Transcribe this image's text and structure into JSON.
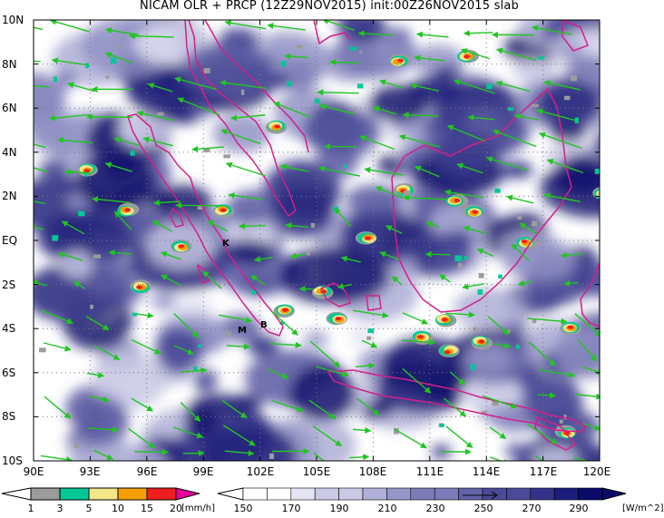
{
  "title": "NICAM OLR + PRCP (12Z29NOV2015) init:00Z26NOV2015 slab",
  "lat_labels": [
    "10N",
    "8N",
    "6N",
    "4N",
    "2N",
    "EQ",
    "2S",
    "4S",
    "6S",
    "8S",
    "10S"
  ],
  "lon_labels": [
    "90E",
    "93E",
    "96E",
    "99E",
    "102E",
    "105E",
    "108E",
    "111E",
    "114E",
    "117E",
    "120E"
  ],
  "markers": [
    {
      "label": "K",
      "lon": 100.4,
      "lat": -0.2
    },
    {
      "label": "M",
      "lon": 100.4,
      "lat": -4.0
    },
    {
      "label": "B",
      "lon": 101.8,
      "lat": -3.8
    }
  ],
  "prcp_colorbar": {
    "ticks": [
      "1",
      "3",
      "5",
      "10",
      "15",
      "20"
    ],
    "unit": "[mm/h]",
    "colors": [
      "#ffffff",
      "#9c9c9c",
      "#00c896",
      "#f5e68a",
      "#f5a000",
      "#f01e1e",
      "#e6009b"
    ]
  },
  "olr_colorbar": {
    "ticks": [
      "150",
      "170",
      "190",
      "210",
      "230",
      "250",
      "270",
      "290"
    ],
    "unit": "[W/m^2]",
    "colors": [
      "#ffffff",
      "#e4e4f4",
      "#cacae6",
      "#b0b0d8",
      "#9696c8",
      "#7c7cb8",
      "#6262a8",
      "#4a4a98",
      "#32328a",
      "#1c1c7a",
      "#0a0a6a"
    ]
  }
}
